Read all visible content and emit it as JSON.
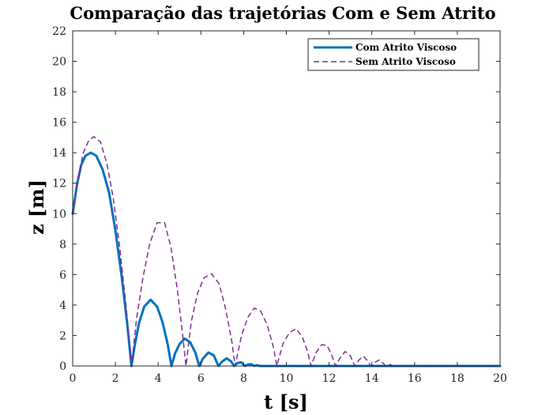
{
  "chart_data": {
    "type": "line",
    "title": "Comparação das trajetórias Com e Sem Atrito",
    "xlabel": "t [s]",
    "ylabel": "z [m]",
    "xlim": [
      0,
      20
    ],
    "ylim": [
      0,
      22
    ],
    "xticks": [
      0,
      2,
      4,
      6,
      8,
      10,
      12,
      14,
      16,
      18,
      20
    ],
    "yticks": [
      0,
      2,
      4,
      6,
      8,
      10,
      12,
      14,
      16,
      18,
      20,
      22
    ],
    "grid": false,
    "legend_position": "top-right",
    "series": [
      {
        "name": "Com Atrito Viscoso",
        "color": "#0072BD",
        "style": "solid",
        "points": [
          [
            0,
            10
          ],
          [
            0.2,
            11.9
          ],
          [
            0.4,
            13.2
          ],
          [
            0.6,
            13.8
          ],
          [
            0.85,
            14.0
          ],
          [
            1.1,
            13.8
          ],
          [
            1.4,
            12.9
          ],
          [
            1.7,
            11.4
          ],
          [
            2.0,
            8.9
          ],
          [
            2.3,
            5.8
          ],
          [
            2.55,
            2.8
          ],
          [
            2.75,
            0
          ],
          [
            2.9,
            1.3
          ],
          [
            3.1,
            2.8
          ],
          [
            3.35,
            3.9
          ],
          [
            3.65,
            4.35
          ],
          [
            3.95,
            3.9
          ],
          [
            4.2,
            2.9
          ],
          [
            4.45,
            1.4
          ],
          [
            4.62,
            0
          ],
          [
            4.8,
            0.85
          ],
          [
            5.0,
            1.45
          ],
          [
            5.25,
            1.8
          ],
          [
            5.5,
            1.55
          ],
          [
            5.75,
            0.85
          ],
          [
            5.92,
            0
          ],
          [
            6.1,
            0.5
          ],
          [
            6.35,
            0.88
          ],
          [
            6.6,
            0.7
          ],
          [
            6.82,
            0
          ],
          [
            7.0,
            0.3
          ],
          [
            7.2,
            0.5
          ],
          [
            7.42,
            0.3
          ],
          [
            7.55,
            0
          ],
          [
            7.7,
            0.18
          ],
          [
            7.88,
            0.25
          ],
          [
            8.05,
            0
          ],
          [
            8.2,
            0.1
          ],
          [
            8.35,
            0.12
          ],
          [
            8.5,
            0
          ],
          [
            8.62,
            0.05
          ],
          [
            8.75,
            0
          ],
          [
            9,
            0
          ],
          [
            20,
            0
          ]
        ]
      },
      {
        "name": "Sem Atrito Viscoso",
        "color": "#7E2F8E",
        "style": "dashed",
        "points": [
          [
            0,
            10
          ],
          [
            0.25,
            12.3
          ],
          [
            0.5,
            14.0
          ],
          [
            0.75,
            14.8
          ],
          [
            1.0,
            15.05
          ],
          [
            1.3,
            14.7
          ],
          [
            1.6,
            13.3
          ],
          [
            1.9,
            11.0
          ],
          [
            2.2,
            7.8
          ],
          [
            2.5,
            3.9
          ],
          [
            2.75,
            0
          ],
          [
            3.0,
            3.2
          ],
          [
            3.3,
            5.9
          ],
          [
            3.6,
            8.0
          ],
          [
            3.95,
            9.4
          ],
          [
            4.3,
            9.4
          ],
          [
            4.6,
            7.8
          ],
          [
            4.9,
            5.0
          ],
          [
            5.15,
            2.0
          ],
          [
            5.3,
            0
          ],
          [
            5.55,
            2.9
          ],
          [
            5.85,
            4.8
          ],
          [
            6.15,
            5.8
          ],
          [
            6.5,
            6.05
          ],
          [
            6.85,
            5.4
          ],
          [
            7.15,
            3.8
          ],
          [
            7.45,
            1.6
          ],
          [
            7.6,
            0
          ],
          [
            7.9,
            2.0
          ],
          [
            8.2,
            3.2
          ],
          [
            8.5,
            3.8
          ],
          [
            8.8,
            3.6
          ],
          [
            9.1,
            2.7
          ],
          [
            9.4,
            1.2
          ],
          [
            9.55,
            0
          ],
          [
            9.85,
            1.5
          ],
          [
            10.15,
            2.2
          ],
          [
            10.45,
            2.45
          ],
          [
            10.75,
            1.9
          ],
          [
            11.0,
            0.9
          ],
          [
            11.15,
            0
          ],
          [
            11.4,
            0.9
          ],
          [
            11.65,
            1.4
          ],
          [
            11.9,
            1.35
          ],
          [
            12.1,
            0.8
          ],
          [
            12.3,
            0
          ],
          [
            12.5,
            0.5
          ],
          [
            12.75,
            0.95
          ],
          [
            13.0,
            0.65
          ],
          [
            13.2,
            0
          ],
          [
            13.4,
            0.4
          ],
          [
            13.6,
            0.65
          ],
          [
            13.8,
            0.35
          ],
          [
            13.95,
            0
          ],
          [
            14.15,
            0.25
          ],
          [
            14.35,
            0.4
          ],
          [
            14.55,
            0.15
          ],
          [
            14.65,
            0
          ],
          [
            14.85,
            0.1
          ],
          [
            15.0,
            0
          ],
          [
            20,
            0
          ]
        ]
      }
    ]
  }
}
